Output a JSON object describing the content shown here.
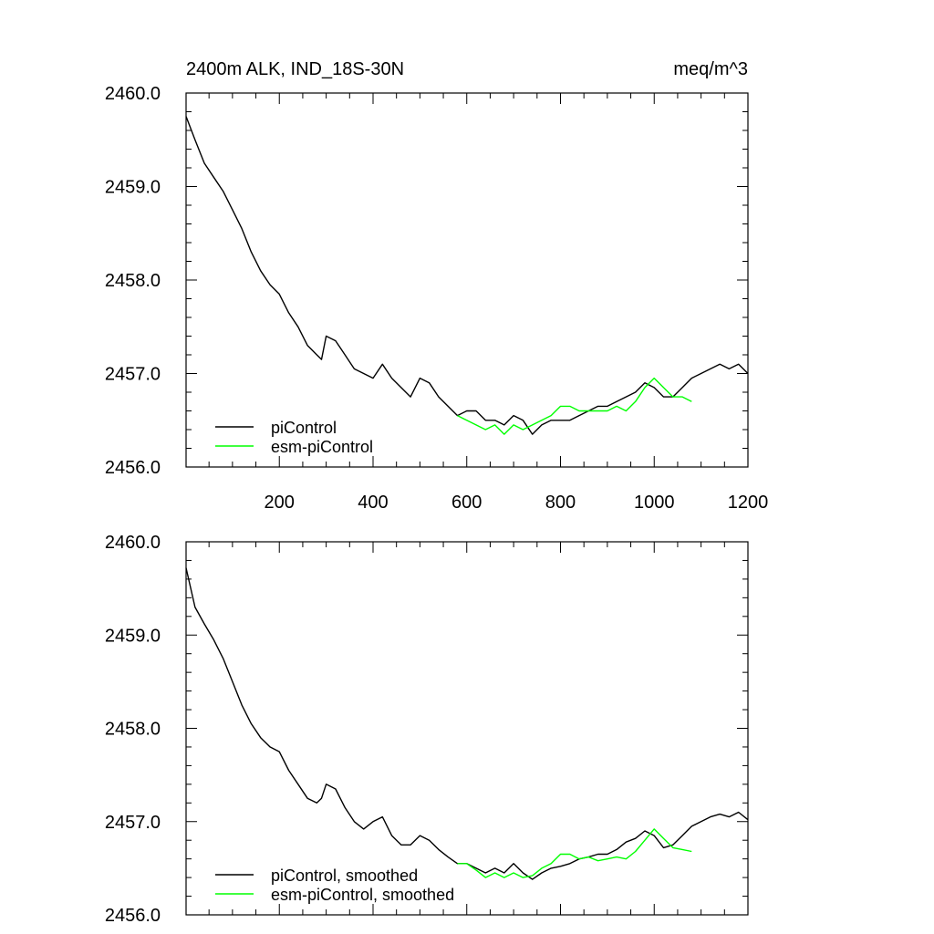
{
  "chart_data": [
    {
      "type": "line",
      "title_left": "2400m ALK, IND_18S-30N",
      "title_right": "meq/m^3",
      "xlim": [
        1,
        1200
      ],
      "ylim": [
        2456.0,
        2460.0
      ],
      "x_ticks": [
        200,
        400,
        600,
        800,
        1000,
        1200
      ],
      "x_tick_labels": [
        "200",
        "400",
        "600",
        "800",
        "1000",
        "1200"
      ],
      "y_ticks": [
        2456.0,
        2457.0,
        2458.0,
        2459.0,
        2460.0
      ],
      "y_tick_labels": [
        "2456.0",
        "2457.0",
        "2458.0",
        "2459.0",
        "2460.0"
      ],
      "legend_position": "bottom-left",
      "series": [
        {
          "name": "piControl",
          "color": "#000000",
          "x": [
            1,
            20,
            40,
            60,
            80,
            100,
            120,
            140,
            160,
            180,
            200,
            220,
            240,
            260,
            280,
            290,
            300,
            320,
            340,
            360,
            380,
            400,
            420,
            440,
            460,
            480,
            500,
            520,
            540,
            560,
            580,
            600,
            620,
            640,
            660,
            680,
            700,
            720,
            740,
            760,
            780,
            800,
            820,
            840,
            860,
            880,
            900,
            920,
            940,
            960,
            980,
            1000,
            1020,
            1040,
            1060,
            1080,
            1100,
            1120,
            1140,
            1160,
            1180,
            1200
          ],
          "y": [
            2459.75,
            2459.5,
            2459.25,
            2459.1,
            2458.95,
            2458.75,
            2458.55,
            2458.3,
            2458.1,
            2457.95,
            2457.85,
            2457.65,
            2457.5,
            2457.3,
            2457.2,
            2457.15,
            2457.4,
            2457.35,
            2457.2,
            2457.05,
            2457.0,
            2456.95,
            2457.1,
            2456.95,
            2456.85,
            2456.75,
            2456.95,
            2456.9,
            2456.75,
            2456.65,
            2456.55,
            2456.6,
            2456.6,
            2456.5,
            2456.5,
            2456.45,
            2456.55,
            2456.5,
            2456.35,
            2456.45,
            2456.5,
            2456.5,
            2456.5,
            2456.55,
            2456.6,
            2456.65,
            2456.65,
            2456.7,
            2456.75,
            2456.8,
            2456.9,
            2456.85,
            2456.75,
            2456.75,
            2456.85,
            2456.95,
            2457.0,
            2457.05,
            2457.1,
            2457.05,
            2457.1,
            2457.0
          ]
        },
        {
          "name": "esm-piControl",
          "color": "#00ff00",
          "x": [
            580,
            600,
            620,
            640,
            660,
            680,
            700,
            720,
            740,
            760,
            780,
            800,
            820,
            840,
            860,
            880,
            900,
            920,
            940,
            960,
            980,
            1000,
            1020,
            1040,
            1060,
            1080
          ],
          "y": [
            2456.55,
            2456.5,
            2456.45,
            2456.4,
            2456.45,
            2456.35,
            2456.45,
            2456.4,
            2456.45,
            2456.5,
            2456.55,
            2456.65,
            2456.65,
            2456.6,
            2456.6,
            2456.6,
            2456.6,
            2456.65,
            2456.6,
            2456.7,
            2456.85,
            2456.95,
            2456.85,
            2456.75,
            2456.75,
            2456.7
          ]
        }
      ]
    },
    {
      "type": "line",
      "xlim": [
        1,
        1200
      ],
      "ylim": [
        2456.0,
        2460.0
      ],
      "x_ticks": [
        200,
        400,
        600,
        800,
        1000,
        1200
      ],
      "y_ticks": [
        2456.0,
        2457.0,
        2458.0,
        2459.0,
        2460.0
      ],
      "y_tick_labels": [
        "2456.0",
        "2457.0",
        "2458.0",
        "2459.0",
        "2460.0"
      ],
      "legend_position": "bottom-left",
      "series": [
        {
          "name": "piControl, smoothed",
          "color": "#000000",
          "x": [
            1,
            20,
            40,
            60,
            80,
            100,
            120,
            140,
            160,
            180,
            200,
            220,
            240,
            260,
            280,
            290,
            300,
            320,
            340,
            360,
            380,
            400,
            420,
            440,
            460,
            480,
            500,
            520,
            540,
            560,
            580,
            600,
            620,
            640,
            660,
            680,
            700,
            720,
            740,
            760,
            780,
            800,
            820,
            840,
            860,
            880,
            900,
            920,
            940,
            960,
            980,
            1000,
            1020,
            1040,
            1060,
            1080,
            1100,
            1120,
            1140,
            1160,
            1180,
            1200
          ],
          "y": [
            2459.72,
            2459.3,
            2459.12,
            2458.95,
            2458.75,
            2458.5,
            2458.25,
            2458.05,
            2457.9,
            2457.8,
            2457.75,
            2457.55,
            2457.4,
            2457.25,
            2457.2,
            2457.25,
            2457.4,
            2457.35,
            2457.15,
            2457.0,
            2456.92,
            2457.0,
            2457.05,
            2456.85,
            2456.75,
            2456.75,
            2456.85,
            2456.8,
            2456.7,
            2456.62,
            2456.55,
            2456.55,
            2456.5,
            2456.45,
            2456.5,
            2456.45,
            2456.55,
            2456.45,
            2456.38,
            2456.45,
            2456.5,
            2456.52,
            2456.55,
            2456.6,
            2456.62,
            2456.65,
            2456.65,
            2456.7,
            2456.78,
            2456.82,
            2456.9,
            2456.85,
            2456.72,
            2456.75,
            2456.85,
            2456.95,
            2457.0,
            2457.05,
            2457.08,
            2457.05,
            2457.1,
            2457.02
          ]
        },
        {
          "name": "esm-piControl, smoothed",
          "color": "#00ff00",
          "x": [
            580,
            600,
            620,
            640,
            660,
            680,
            700,
            720,
            740,
            760,
            780,
            800,
            820,
            840,
            860,
            880,
            900,
            920,
            940,
            960,
            980,
            1000,
            1020,
            1040,
            1060,
            1080
          ],
          "y": [
            2456.55,
            2456.55,
            2456.48,
            2456.4,
            2456.45,
            2456.4,
            2456.45,
            2456.4,
            2456.42,
            2456.5,
            2456.55,
            2456.65,
            2456.65,
            2456.6,
            2456.62,
            2456.58,
            2456.6,
            2456.62,
            2456.6,
            2456.68,
            2456.8,
            2456.92,
            2456.82,
            2456.72,
            2456.7,
            2456.68
          ]
        }
      ]
    }
  ]
}
